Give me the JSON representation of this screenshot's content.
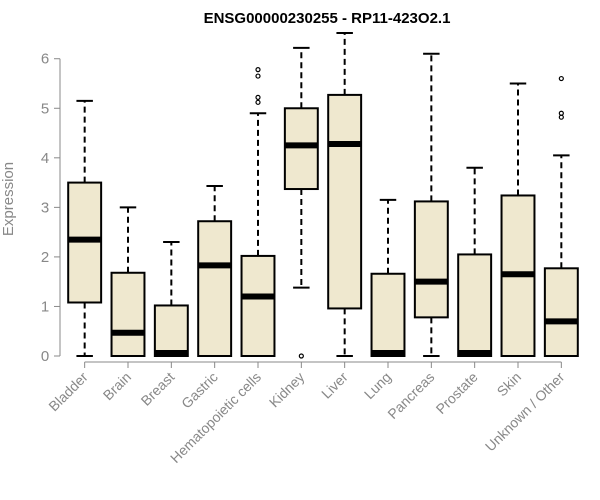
{
  "chart_data": {
    "type": "boxplot",
    "title": "ENSG00000230255 - RP11-423O2.1",
    "ylabel": "Expression",
    "ylim": [
      0,
      6.6
    ],
    "yticks": [
      0,
      1,
      2,
      3,
      4,
      5,
      6
    ],
    "box_fill": "#efe8cf",
    "stroke": "#000000",
    "categories": [
      "Bladder",
      "Brain",
      "Breast",
      "Gastric",
      "Hematopoietic cells",
      "Kidney",
      "Liver",
      "Lung",
      "Pancreas",
      "Prostate",
      "Skin",
      "Unknown / Other"
    ],
    "boxes": [
      {
        "min": 0,
        "q1": 1.08,
        "median": 2.35,
        "q3": 3.5,
        "max": 5.15,
        "outliers": []
      },
      {
        "min": 0,
        "q1": 0,
        "median": 0.47,
        "q3": 1.68,
        "max": 3.0,
        "outliers": []
      },
      {
        "min": 0,
        "q1": 0,
        "median": 0.02,
        "q3": 1.02,
        "max": 2.3,
        "outliers": []
      },
      {
        "min": 0,
        "q1": 0,
        "median": 1.83,
        "q3": 2.72,
        "max": 3.43,
        "outliers": []
      },
      {
        "min": 0,
        "q1": 0,
        "median": 1.2,
        "q3": 2.02,
        "max": 4.9,
        "outliers": [
          5.12,
          5.22,
          5.65,
          5.78
        ]
      },
      {
        "min": 1.38,
        "q1": 3.37,
        "median": 4.25,
        "q3": 5.0,
        "max": 6.22,
        "outliers": [
          0
        ]
      },
      {
        "min": 0,
        "q1": 0.96,
        "median": 4.28,
        "q3": 5.27,
        "max": 6.52,
        "outliers": []
      },
      {
        "min": 0,
        "q1": 0,
        "median": 0.02,
        "q3": 1.66,
        "max": 3.15,
        "outliers": []
      },
      {
        "min": 0,
        "q1": 0.78,
        "median": 1.5,
        "q3": 3.12,
        "max": 6.1,
        "outliers": []
      },
      {
        "min": 0,
        "q1": 0,
        "median": 0.02,
        "q3": 2.05,
        "max": 3.8,
        "outliers": []
      },
      {
        "min": 0,
        "q1": 0,
        "median": 1.65,
        "q3": 3.24,
        "max": 5.5,
        "outliers": []
      },
      {
        "min": 0,
        "q1": 0,
        "median": 0.7,
        "q3": 1.77,
        "max": 4.05,
        "outliers": [
          4.82,
          4.9,
          5.6
        ]
      }
    ]
  }
}
